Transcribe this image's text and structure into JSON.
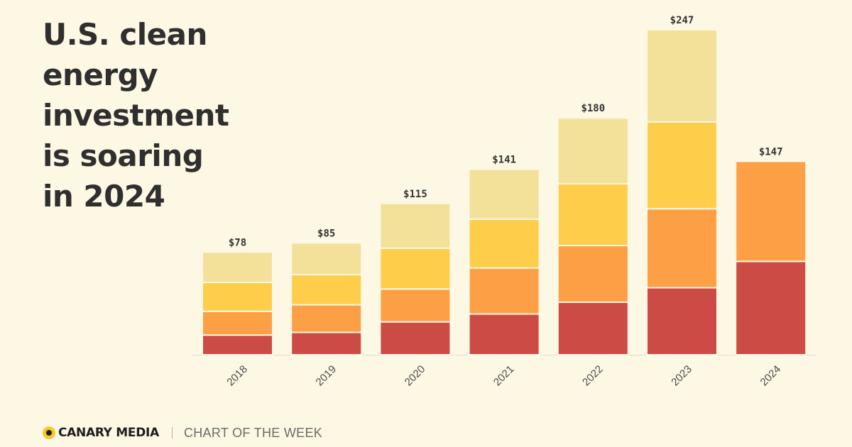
{
  "headline": [
    "U.S. clean",
    "energy",
    "investment",
    "is soaring",
    "in 2024"
  ],
  "footer": {
    "brand": "CANARY MEDIA",
    "kicker": "CHART OF THE WEEK"
  },
  "colors": {
    "background": "#fdf8e4",
    "stack": [
      "#cd4b45",
      "#fd9f44",
      "#fece4b",
      "#f3e19a"
    ],
    "axis": "#e6dfc8",
    "label": "#333333"
  },
  "chart_data": {
    "type": "bar",
    "stacked": true,
    "categories": [
      "2018",
      "2019",
      "2020",
      "2021",
      "2022",
      "2023",
      "2024"
    ],
    "totals": [
      "$78",
      "$85",
      "$115",
      "$141",
      "$180",
      "$247",
      "$147"
    ],
    "total_values": [
      78,
      85,
      115,
      141,
      180,
      247,
      147
    ],
    "series": [
      {
        "values": [
          15,
          17,
          25,
          31,
          40,
          51,
          71
        ]
      },
      {
        "values": [
          18,
          21,
          25,
          35,
          43,
          60,
          76
        ]
      },
      {
        "values": [
          22,
          23,
          31,
          37,
          47,
          66,
          0
        ]
      },
      {
        "values": [
          23,
          24,
          34,
          38,
          50,
          70,
          0
        ]
      }
    ],
    "ylim": [
      0,
      247
    ],
    "grid": false,
    "legend": "none",
    "xlabel": "",
    "ylabel": ""
  }
}
